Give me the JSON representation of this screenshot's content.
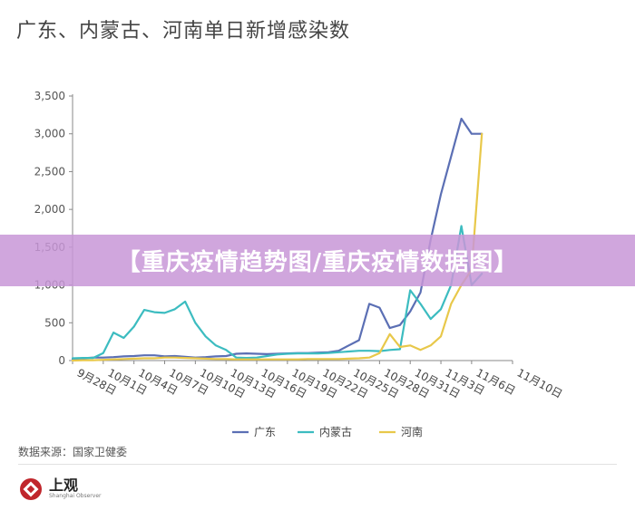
{
  "title": "广东、内蒙古、河南单日新增感染数",
  "banner": "【重庆疫情趋势图/重庆疫情数据图】",
  "source": "数据来源：国家卫健委",
  "logo": {
    "name": "上观",
    "subtitle": "Shanghai Observer"
  },
  "chart_data": {
    "type": "line",
    "title": "广东、内蒙古、河南单日新增感染数",
    "xlabel": "",
    "ylabel": "",
    "ylim": [
      0,
      3500
    ],
    "yticks": [
      "0",
      "500",
      "1,000",
      "1,500",
      "2,000",
      "2,500",
      "3,000",
      "3,500"
    ],
    "ytick_values": [
      0,
      500,
      1000,
      1500,
      2000,
      2500,
      3000,
      3500
    ],
    "x": [
      "9月28日",
      "9月29日",
      "9月30日",
      "10月1日",
      "10月2日",
      "10月3日",
      "10月4日",
      "10月5日",
      "10月6日",
      "10月7日",
      "10月8日",
      "10月9日",
      "10月10日",
      "10月11日",
      "10月12日",
      "10月13日",
      "10月14日",
      "10月15日",
      "10月16日",
      "10月17日",
      "10月18日",
      "10月19日",
      "10月20日",
      "10月21日",
      "10月22日",
      "10月23日",
      "10月24日",
      "10月25日",
      "10月26日",
      "10月27日",
      "10月28日",
      "10月29日",
      "10月30日",
      "10月31日",
      "11月1日",
      "11月2日",
      "11月3日",
      "11月4日",
      "11月5日",
      "11月6日",
      "11月7日",
      "11月8日",
      "11月9日",
      "11月10日"
    ],
    "xticks": [
      "9月28日",
      "10月1日",
      "10月4日",
      "10月7日",
      "10月10日",
      "10月13日",
      "10月16日",
      "10月19日",
      "10月22日",
      "10月25日",
      "10月28日",
      "10月31日",
      "11月3日",
      "11月6日",
      "11月10日"
    ],
    "series": [
      {
        "name": "广东",
        "color": "#5b6fb4",
        "values": [
          20,
          30,
          40,
          40,
          45,
          55,
          60,
          70,
          70,
          55,
          60,
          50,
          40,
          45,
          55,
          60,
          90,
          95,
          90,
          85,
          90,
          95,
          100,
          100,
          105,
          110,
          130,
          200,
          270,
          750,
          700,
          430,
          470,
          650,
          900,
          1600,
          2200,
          2700,
          3200,
          3000,
          3000,
          null,
          null,
          null
        ]
      },
      {
        "name": "内蒙古",
        "color": "#3cbcc0",
        "values": [
          30,
          35,
          35,
          100,
          370,
          300,
          450,
          670,
          640,
          630,
          680,
          780,
          500,
          320,
          200,
          140,
          40,
          35,
          40,
          60,
          80,
          90,
          95,
          95,
          95,
          100,
          110,
          120,
          130,
          130,
          125,
          140,
          150,
          930,
          750,
          550,
          680,
          1000,
          1780,
          1000,
          1150,
          null,
          null,
          null
        ]
      },
      {
        "name": "河南",
        "color": "#e8c84a",
        "values": [
          0,
          5,
          5,
          10,
          15,
          20,
          25,
          30,
          30,
          40,
          40,
          35,
          30,
          25,
          20,
          20,
          15,
          15,
          15,
          15,
          15,
          15,
          15,
          20,
          20,
          20,
          20,
          25,
          30,
          40,
          100,
          350,
          180,
          200,
          140,
          200,
          320,
          750,
          1000,
          1200,
          3000,
          null,
          null,
          null
        ]
      }
    ],
    "legend_position": "bottom-center",
    "grid": false
  }
}
